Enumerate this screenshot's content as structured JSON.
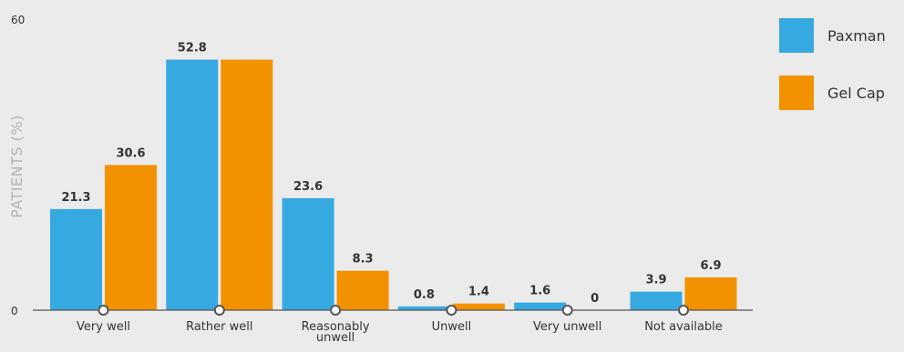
{
  "colors": {
    "paxman": "#37a9e1",
    "gelcap": "#f39200",
    "axis": "#555555",
    "text": "#333333",
    "muted": "#b3b3b3"
  },
  "chart_data": {
    "type": "bar",
    "title": "",
    "xlabel": "",
    "ylabel": "PATIENTS (%)",
    "ylim": [
      0,
      60
    ],
    "yticks": [
      "0",
      "60"
    ],
    "categories": [
      "Very well",
      "Rather well",
      "Reasonably unwell",
      "Unwell",
      "Very unwell",
      "Not available"
    ],
    "category_lines": [
      [
        "Very well"
      ],
      [
        "Rather well"
      ],
      [
        "Reasonably",
        "unwell"
      ],
      [
        "Unwell"
      ],
      [
        "Very unwell"
      ],
      [
        "Not available"
      ]
    ],
    "series": [
      {
        "name": "Paxman",
        "values": [
          21.3,
          52.8,
          23.6,
          0.8,
          1.6,
          3.9
        ],
        "labels": [
          "21.3",
          "52.8",
          "23.6",
          "0.8",
          "1.6",
          "3.9"
        ]
      },
      {
        "name": "Gel Cap",
        "values": [
          30.6,
          52.8,
          8.3,
          1.4,
          0,
          6.9
        ],
        "labels": [
          "30.6",
          "",
          "8.3",
          "1.4",
          "0",
          "6.9"
        ]
      }
    ],
    "legend_position": "top-right",
    "grid": false
  }
}
